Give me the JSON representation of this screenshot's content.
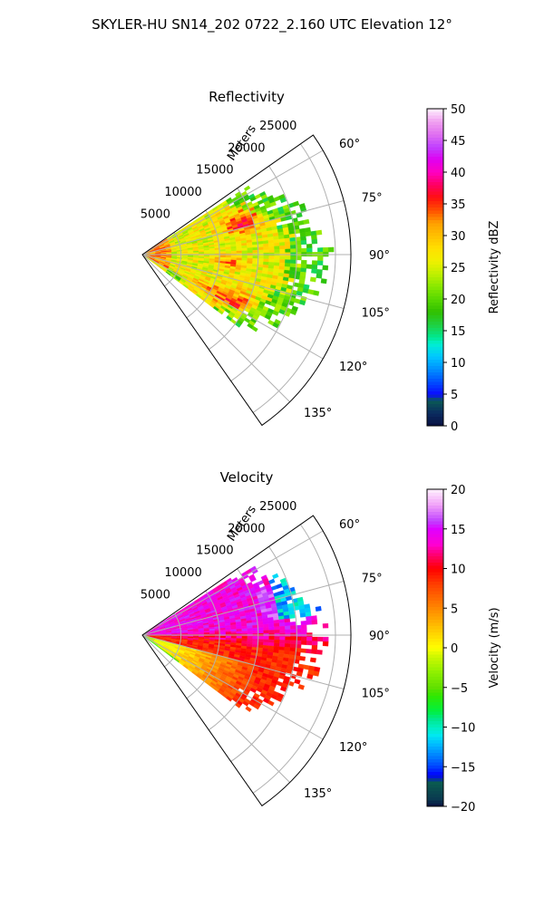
{
  "suptitle": "SKYLER-HU  SN14_202  0722_2.160 UTC Elevation 12°",
  "chart_data": [
    {
      "type": "heatmap",
      "projection": "polar-sector",
      "title": "Reflectivity",
      "radial_label": "Meters",
      "radial_ticks": [
        5000,
        10000,
        15000,
        20000,
        25000
      ],
      "radial_tick_labels": [
        "5000",
        "10000",
        "15000",
        "20000",
        "25000"
      ],
      "rmax": 27000,
      "azimuth_range": [
        55,
        145
      ],
      "angle_ticks": [
        60,
        75,
        90,
        105,
        120,
        135
      ],
      "angle_tick_labels": [
        "60°",
        "75°",
        "90°",
        "105°",
        "120°",
        "135°"
      ],
      "grid": true,
      "colorbar": {
        "label": "Reflectivity dBZ",
        "range": [
          0,
          50
        ],
        "ticks": [
          0,
          5,
          10,
          15,
          20,
          25,
          30,
          35,
          40,
          45,
          50
        ],
        "tick_labels": [
          "0",
          "5",
          "10",
          "15",
          "20",
          "25",
          "30",
          "35",
          "40",
          "45",
          "50"
        ]
      },
      "field_summary": {
        "data_azimuth_range": [
          57,
          127
        ],
        "typical_values": [
          22,
          32
        ],
        "peak_values": [
          35,
          38
        ]
      }
    },
    {
      "type": "heatmap",
      "projection": "polar-sector",
      "title": "Velocity",
      "radial_label": "Meters",
      "radial_ticks": [
        5000,
        10000,
        15000,
        20000,
        25000
      ],
      "radial_tick_labels": [
        "5000",
        "10000",
        "15000",
        "20000",
        "25000"
      ],
      "rmax": 27000,
      "azimuth_range": [
        55,
        145
      ],
      "angle_ticks": [
        60,
        75,
        90,
        105,
        120,
        135
      ],
      "angle_tick_labels": [
        "60°",
        "75°",
        "90°",
        "105°",
        "120°",
        "135°"
      ],
      "grid": true,
      "colorbar": {
        "label": "Velocity (m/s)",
        "range": [
          -20,
          20
        ],
        "ticks": [
          -20,
          -15,
          -10,
          -5,
          0,
          5,
          10,
          15,
          20
        ],
        "tick_labels": [
          "−20",
          "−15",
          "−10",
          "−5",
          "0",
          "5",
          "10",
          "15",
          "20"
        ]
      },
      "field_summary": {
        "data_azimuth_range": [
          57,
          127
        ],
        "north_values": [
          13,
          17
        ],
        "south_values": [
          7,
          11
        ],
        "outer_north_values": [
          -15,
          -10
        ]
      }
    }
  ]
}
